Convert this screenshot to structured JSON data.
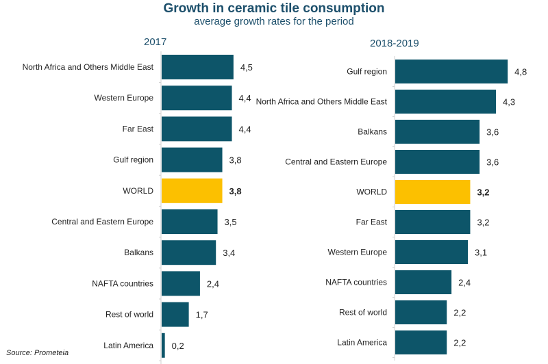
{
  "chart_data": [
    {
      "type": "bar",
      "orientation": "horizontal",
      "panel_title": "2017",
      "categories": [
        "North Africa and Others Middle East",
        "Western Europe",
        "Far East",
        "Gulf region",
        "WORLD",
        "Central and Eastern Europe",
        "Balkans",
        "NAFTA countries",
        "Rest of world",
        "Latin America"
      ],
      "values": [
        4.5,
        4.4,
        4.4,
        3.8,
        3.8,
        3.5,
        3.4,
        2.4,
        1.7,
        0.2
      ],
      "value_labels": [
        "4,5",
        "4,4",
        "4,4",
        "3,8",
        "3,8",
        "3,5",
        "3,4",
        "2,4",
        "1,7",
        "0,2"
      ],
      "highlight": "WORLD",
      "xlim": [
        0,
        4.5
      ],
      "grid": false
    },
    {
      "type": "bar",
      "orientation": "horizontal",
      "panel_title": "2018-2019",
      "categories": [
        "Gulf region",
        "North Africa and Others Middle East",
        "Balkans",
        "Central and Eastern Europe",
        "WORLD",
        "Far East",
        "Western Europe",
        "NAFTA countries",
        "Rest of world",
        "Latin America"
      ],
      "values": [
        4.8,
        4.3,
        3.6,
        3.6,
        3.2,
        3.2,
        3.1,
        2.4,
        2.2,
        2.2
      ],
      "value_labels": [
        "4,8",
        "4,3",
        "3,6",
        "3,6",
        "3,2",
        "3,2",
        "3,1",
        "2,4",
        "2,2",
        "2,2"
      ],
      "highlight": "WORLD",
      "xlim": [
        0,
        4.8
      ],
      "grid": false
    }
  ],
  "title": "Growth in ceramic tile consumption",
  "subtitle": "average growth rates for the period",
  "source": "Source: Prometeia",
  "colors": {
    "bar": "#0d5569",
    "highlight": "#fcc000",
    "title": "#1c4f6b"
  }
}
